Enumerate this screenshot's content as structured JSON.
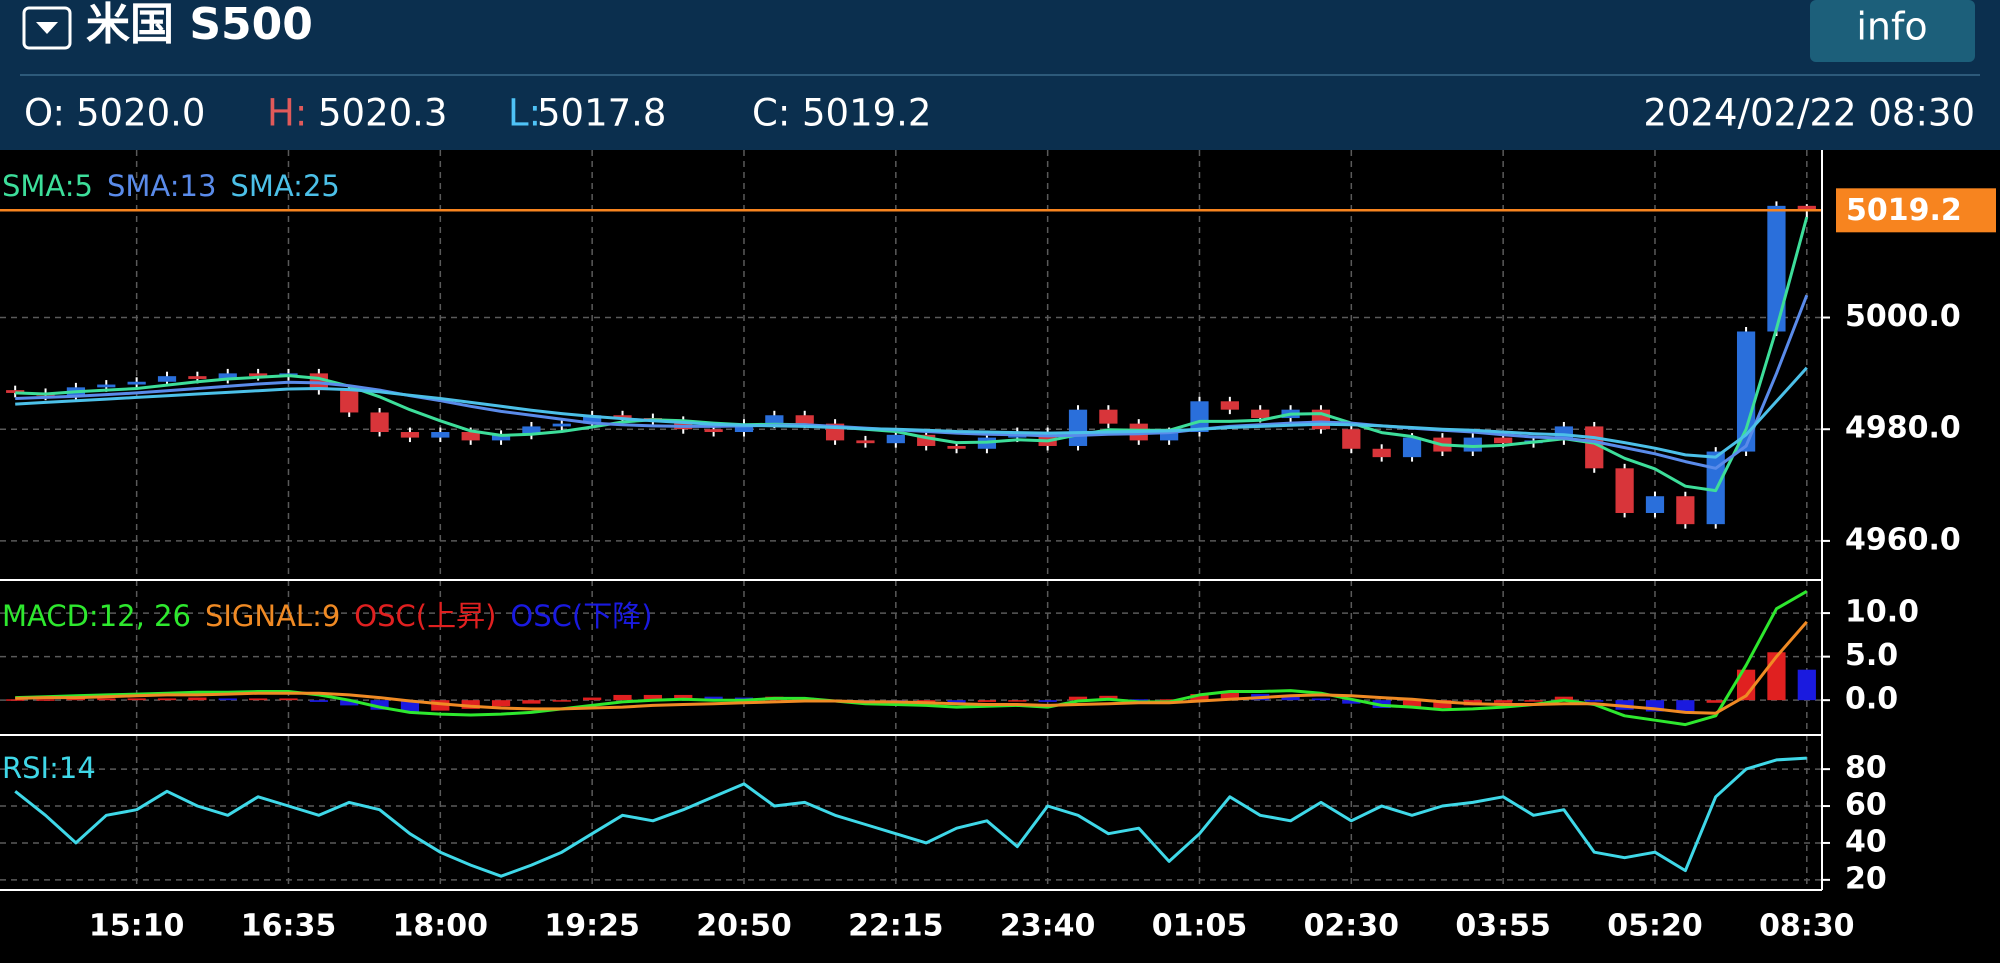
{
  "header": {
    "title": "米国 S500",
    "button": "info",
    "quote": [
      {
        "label": "O:",
        "value": "5020.0"
      },
      {
        "label": "H:",
        "value": "5020.3"
      },
      {
        "label": "L:",
        "value": "5017.8"
      },
      {
        "label": "C:",
        "value": "5019.2"
      }
    ],
    "datetime": "2024/02/22 08:30"
  },
  "chart_data": [
    {
      "type": "candlestick",
      "categories": [
        null,
        null,
        null,
        null,
        "15:10",
        null,
        null,
        null,
        null,
        "16:35",
        null,
        null,
        null,
        null,
        "18:00",
        null,
        null,
        null,
        null,
        "19:25",
        null,
        null,
        null,
        null,
        "20:50",
        null,
        null,
        null,
        null,
        "22:15",
        null,
        null,
        null,
        null,
        "23:40",
        null,
        null,
        null,
        null,
        "01:05",
        null,
        null,
        null,
        null,
        "02:30",
        null,
        null,
        null,
        null,
        "03:55",
        null,
        null,
        null,
        null,
        "05:20",
        null,
        null,
        null,
        null,
        "08:30"
      ],
      "open": [
        4987.0,
        4986.5,
        4986.0,
        4987.5,
        4988.0,
        4988.5,
        4989.5,
        4989.0,
        4990.0,
        4989.5,
        4990.0,
        4987.0,
        4983.0,
        4979.5,
        4978.5,
        4979.5,
        4978.0,
        4979.0,
        4980.5,
        4981.0,
        4982.5,
        4982.0,
        4981.5,
        4980.0,
        4979.5,
        4981.0,
        4982.5,
        4981.0,
        4978.0,
        4977.5,
        4979.0,
        4977.0,
        4976.5,
        4978.5,
        4979.5,
        4977.0,
        4983.5,
        4981.0,
        4978.0,
        4979.5,
        4985.0,
        4983.5,
        4982.0,
        4983.5,
        4980.0,
        4976.5,
        4975.0,
        4978.5,
        4976.0,
        4978.5,
        4977.5,
        4978.0,
        4980.5,
        4973.0,
        4965.0,
        4968.0,
        4963.0,
        4976.0,
        4997.5,
        5020.0
      ],
      "high": [
        4987.8,
        4987.3,
        4988.3,
        4988.8,
        4989.3,
        4990.3,
        4990.3,
        4990.8,
        4990.8,
        4990.8,
        4990.8,
        4987.8,
        4983.8,
        4980.3,
        4980.3,
        4980.3,
        4979.8,
        4981.3,
        4981.8,
        4983.3,
        4983.3,
        4982.8,
        4982.3,
        4980.8,
        4981.8,
        4983.3,
        4983.3,
        4981.8,
        4978.8,
        4979.8,
        4979.8,
        4977.8,
        4979.3,
        4980.3,
        4980.3,
        4984.3,
        4984.3,
        4981.8,
        4980.3,
        4985.8,
        4985.8,
        4984.3,
        4984.3,
        4984.3,
        4980.8,
        4977.3,
        4979.3,
        4979.3,
        4979.3,
        4979.3,
        4978.8,
        4981.3,
        4981.3,
        4973.8,
        4968.8,
        4968.8,
        4976.8,
        4998.3,
        5020.8,
        5020.3
      ],
      "low": [
        4985.7,
        4985.2,
        4985.2,
        4986.7,
        4987.2,
        4987.7,
        4988.2,
        4988.2,
        4988.7,
        4988.7,
        4986.2,
        4982.2,
        4978.7,
        4977.7,
        4977.7,
        4977.2,
        4977.2,
        4978.2,
        4979.7,
        4980.2,
        4981.2,
        4980.7,
        4979.2,
        4978.7,
        4978.7,
        4980.2,
        4980.2,
        4977.2,
        4976.7,
        4976.7,
        4976.2,
        4975.7,
        4975.7,
        4977.7,
        4976.2,
        4976.2,
        4980.2,
        4977.2,
        4977.2,
        4978.7,
        4982.7,
        4981.2,
        4981.2,
        4979.2,
        4975.7,
        4974.2,
        4974.2,
        4975.2,
        4975.2,
        4976.7,
        4976.7,
        4977.2,
        4972.2,
        4964.2,
        4964.2,
        4962.2,
        4962.2,
        4975.2,
        4996.7,
        5017.8
      ],
      "close": [
        4986.5,
        4986.0,
        4987.5,
        4988.0,
        4988.5,
        4989.5,
        4989.0,
        4990.0,
        4989.5,
        4990.0,
        4987.0,
        4983.0,
        4979.5,
        4978.5,
        4979.5,
        4978.0,
        4979.0,
        4980.5,
        4981.0,
        4982.5,
        4982.0,
        4981.5,
        4980.0,
        4979.5,
        4981.0,
        4982.5,
        4981.0,
        4978.0,
        4977.5,
        4979.0,
        4977.0,
        4976.5,
        4978.5,
        4979.5,
        4977.0,
        4983.5,
        4981.0,
        4978.0,
        4979.5,
        4985.0,
        4983.5,
        4982.0,
        4983.5,
        4980.0,
        4976.5,
        4975.0,
        4978.5,
        4976.0,
        4978.5,
        4977.5,
        4978.0,
        4980.5,
        4973.0,
        4965.0,
        4968.0,
        4963.0,
        4976.0,
        4997.5,
        5020.0,
        5019.2
      ],
      "up_color": "#2a6fdb",
      "down_color": "#d8353a",
      "wick_color": "#ffffff",
      "series": [
        {
          "name": "SMA:5",
          "color": "#3dde9a",
          "values": [
            4986.5,
            4986.3,
            4986.7,
            4987.0,
            4987.3,
            4987.9,
            4988.5,
            4989.0,
            4989.3,
            4989.6,
            4989.1,
            4987.7,
            4985.8,
            4983.5,
            4981.5,
            4979.7,
            4978.9,
            4979.1,
            4979.6,
            4980.4,
            4981.3,
            4981.7,
            4981.5,
            4981.1,
            4980.8,
            4980.9,
            4980.8,
            4980.4,
            4980.0,
            4979.6,
            4978.5,
            4977.6,
            4977.7,
            4978.1,
            4977.9,
            4979.0,
            4979.9,
            4979.8,
            4979.8,
            4981.4,
            4981.4,
            4981.6,
            4982.7,
            4982.8,
            4981.1,
            4979.4,
            4978.7,
            4977.2,
            4976.9,
            4977.1,
            4977.7,
            4978.3,
            4977.5,
            4974.8,
            4972.9,
            4969.8,
            4969.0,
            4980.0,
            4998.0,
            5018.0
          ]
        },
        {
          "name": "SMA:13",
          "color": "#5a8bea",
          "values": [
            4985.5,
            4985.7,
            4985.9,
            4986.2,
            4986.5,
            4986.9,
            4987.3,
            4987.7,
            4988.1,
            4988.4,
            4988.3,
            4987.8,
            4987.0,
            4986.0,
            4985.1,
            4984.1,
            4983.2,
            4982.5,
            4981.8,
            4981.1,
            4980.8,
            4980.6,
            4980.5,
            4980.5,
            4980.6,
            4980.7,
            4980.8,
            4980.5,
            4980.2,
            4979.9,
            4979.6,
            4979.3,
            4979.1,
            4979.0,
            4978.8,
            4978.9,
            4979.1,
            4979.2,
            4979.4,
            4980.0,
            4980.5,
            4980.8,
            4981.1,
            4981.3,
            4981.1,
            4980.6,
            4980.2,
            4979.8,
            4979.5,
            4979.0,
            4978.6,
            4978.4,
            4977.8,
            4976.7,
            4975.6,
            4974.2,
            4973.0,
            4977.0,
            4990.0,
            5004.0
          ]
        },
        {
          "name": "SMA:25",
          "color": "#4cc0e8",
          "values": [
            4984.5,
            4984.8,
            4985.1,
            4985.4,
            4985.7,
            4986.0,
            4986.3,
            4986.6,
            4986.9,
            4987.2,
            4987.3,
            4987.1,
            4986.7,
            4986.1,
            4985.5,
            4984.8,
            4984.1,
            4983.4,
            4982.8,
            4982.3,
            4981.9,
            4981.5,
            4981.2,
            4980.9,
            4980.7,
            4980.6,
            4980.5,
            4980.3,
            4980.1,
            4980.0,
            4979.8,
            4979.6,
            4979.5,
            4979.4,
            4979.3,
            4979.4,
            4979.5,
            4979.6,
            4979.7,
            4980.0,
            4980.3,
            4980.5,
            4980.7,
            4980.9,
            4980.8,
            4980.6,
            4980.3,
            4980.0,
            4979.8,
            4979.5,
            4979.2,
            4979.0,
            4978.5,
            4977.6,
            4976.6,
            4975.4,
            4975.0,
            4979.0,
            4985.0,
            4991.0
          ]
        }
      ],
      "last_price": 5019.2,
      "last_price_color": "#f7841f",
      "ylim": [
        4953,
        5030
      ],
      "yticks": [
        {
          "value": 4960,
          "label": "4960.0"
        },
        {
          "value": 4980,
          "label": "4980.0"
        },
        {
          "value": 5000,
          "label": "5000.0"
        }
      ],
      "grid": true
    },
    {
      "type": "macd",
      "series": [
        {
          "name": "MACD:12, 26",
          "color": "#2ee82e",
          "values": [
            0.3,
            0.4,
            0.5,
            0.6,
            0.7,
            0.8,
            0.9,
            0.9,
            1.0,
            1.0,
            0.6,
            0.0,
            -0.8,
            -1.4,
            -1.6,
            -1.7,
            -1.6,
            -1.4,
            -1.0,
            -0.6,
            -0.2,
            0.0,
            0.1,
            0.0,
            0.0,
            0.2,
            0.2,
            -0.1,
            -0.4,
            -0.5,
            -0.6,
            -0.8,
            -0.7,
            -0.6,
            -0.8,
            -0.1,
            0.1,
            -0.2,
            -0.2,
            0.6,
            1.0,
            1.0,
            1.1,
            0.8,
            0.1,
            -0.6,
            -0.8,
            -1.1,
            -1.0,
            -0.8,
            -0.5,
            0.0,
            -0.5,
            -1.8,
            -2.3,
            -2.8,
            -1.8,
            4.0,
            10.5,
            12.5
          ]
        },
        {
          "name": "SIGNAL:9",
          "color": "#f08a24",
          "values": [
            0.2,
            0.3,
            0.3,
            0.4,
            0.5,
            0.6,
            0.6,
            0.7,
            0.8,
            0.8,
            0.8,
            0.6,
            0.3,
            -0.1,
            -0.4,
            -0.7,
            -0.9,
            -1.0,
            -1.0,
            -0.9,
            -0.8,
            -0.6,
            -0.5,
            -0.4,
            -0.3,
            -0.2,
            -0.1,
            -0.1,
            -0.2,
            -0.2,
            -0.3,
            -0.4,
            -0.5,
            -0.5,
            -0.6,
            -0.5,
            -0.4,
            -0.3,
            -0.3,
            -0.1,
            0.1,
            0.3,
            0.5,
            0.6,
            0.5,
            0.3,
            0.1,
            -0.2,
            -0.4,
            -0.5,
            -0.5,
            -0.4,
            -0.4,
            -0.7,
            -1.0,
            -1.4,
            -1.5,
            0.5,
            5.0,
            9.0
          ]
        }
      ],
      "histogram": {
        "values": [
          0.1,
          0.1,
          0.2,
          0.2,
          0.2,
          0.2,
          0.3,
          0.2,
          0.2,
          0.2,
          -0.2,
          -0.6,
          -1.1,
          -1.3,
          -1.2,
          -1.0,
          -0.7,
          -0.4,
          0.0,
          0.3,
          0.6,
          0.6,
          0.6,
          0.4,
          0.3,
          0.4,
          0.3,
          0.0,
          -0.2,
          -0.3,
          -0.3,
          -0.4,
          -0.2,
          -0.1,
          -0.2,
          0.4,
          0.5,
          0.1,
          0.1,
          0.7,
          0.9,
          0.7,
          0.6,
          0.2,
          -0.4,
          -0.9,
          -0.9,
          -0.9,
          -0.6,
          -0.3,
          0.0,
          0.4,
          -0.1,
          -1.1,
          -1.3,
          -1.4,
          -0.3,
          3.5,
          5.5,
          3.5
        ],
        "up": {
          "name": "OSC(上昇)",
          "color": "#e02020"
        },
        "down": {
          "name": "OSC(下降)",
          "color": "#1a1adf"
        }
      },
      "ylim": [
        -4,
        13.8
      ],
      "yticks": [
        {
          "value": 0,
          "label": "0.0"
        },
        {
          "value": 5,
          "label": "5.0"
        },
        {
          "value": 10,
          "label": "10.0"
        }
      ],
      "grid": true
    },
    {
      "type": "line",
      "series": [
        {
          "name": "RSI:14",
          "color": "#3fd8e8",
          "values": [
            68,
            55,
            40,
            55,
            58,
            68,
            60,
            55,
            65,
            60,
            55,
            62,
            58,
            45,
            35,
            28,
            22,
            28,
            35,
            45,
            55,
            52,
            58,
            65,
            72,
            60,
            62,
            55,
            50,
            45,
            40,
            48,
            52,
            38,
            60,
            55,
            45,
            48,
            30,
            45,
            65,
            55,
            52,
            62,
            52,
            60,
            55,
            60,
            62,
            65,
            55,
            58,
            35,
            32,
            35,
            25,
            65,
            80,
            85,
            86
          ]
        }
      ],
      "ylim": [
        14.5,
        98.5
      ],
      "yticks": [
        20,
        40,
        60,
        80
      ],
      "grid": true
    }
  ]
}
